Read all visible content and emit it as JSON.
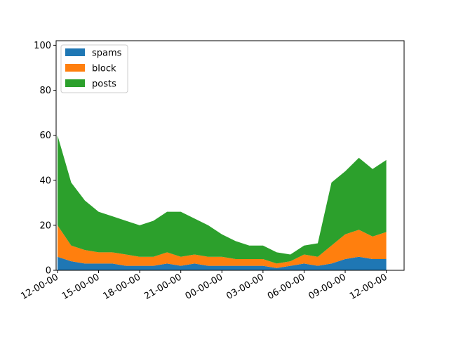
{
  "chart_data": {
    "type": "area",
    "stacked": true,
    "x_tick_labels": [
      "12-00-00",
      "15-00-00",
      "18-00-00",
      "21-00-00",
      "00-00-00",
      "03-00-00",
      "06-00-00",
      "09-00-00",
      "12-00-00"
    ],
    "x_tick_hours": [
      0,
      3,
      6,
      9,
      12,
      15,
      18,
      21,
      24
    ],
    "xlim_hours": [
      -0.1,
      25.3
    ],
    "ylim": [
      0,
      102
    ],
    "y_ticks": [
      0,
      20,
      40,
      60,
      80,
      100
    ],
    "grid": false,
    "legend_position": "top-left",
    "x_hours": [
      0.0,
      1.0,
      2.0,
      3.0,
      4.0,
      5.0,
      6.0,
      7.0,
      8.0,
      9.0,
      10.0,
      11.0,
      12.0,
      13.0,
      14.0,
      15.0,
      16.0,
      17.0,
      18.0,
      19.0,
      20.0,
      21.0,
      22.0,
      23.0,
      24.0
    ],
    "series": [
      {
        "name": "spams",
        "color": "#1f77b4",
        "values": [
          6,
          4,
          3,
          3,
          3,
          2,
          2,
          2,
          3,
          2,
          3,
          2,
          2,
          2,
          2,
          2,
          1,
          2,
          3,
          2,
          3,
          5,
          6,
          5,
          5
        ]
      },
      {
        "name": "block",
        "color": "#ff7f0e",
        "values": [
          14,
          7,
          6,
          5,
          5,
          5,
          4,
          4,
          5,
          4,
          4,
          4,
          4,
          3,
          3,
          3,
          2,
          2,
          4,
          4,
          8,
          11,
          12,
          10,
          12
        ]
      },
      {
        "name": "posts",
        "color": "#2ca02c",
        "values": [
          40,
          28,
          22,
          18,
          16,
          15,
          14,
          16,
          18,
          20,
          16,
          14,
          10,
          8,
          6,
          6,
          5,
          3,
          4,
          6,
          28,
          28,
          32,
          30,
          32
        ]
      }
    ]
  }
}
